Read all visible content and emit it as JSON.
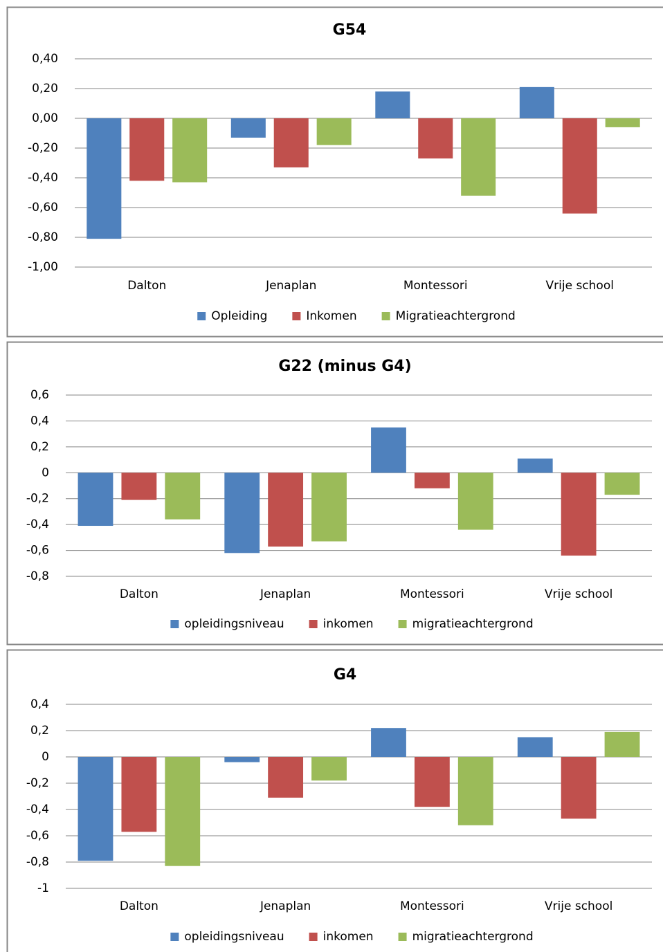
{
  "chart_data": [
    {
      "type": "bar",
      "title": "G54",
      "categories": [
        "Dalton",
        "Jenaplan",
        "Montessori",
        "Vrije school"
      ],
      "series": [
        {
          "name": "Opleiding",
          "color": "#4f81bd",
          "values": [
            -0.81,
            -0.13,
            0.18,
            0.21
          ]
        },
        {
          "name": "Inkomen",
          "color": "#c0504d",
          "values": [
            -0.42,
            -0.33,
            -0.27,
            -0.64
          ]
        },
        {
          "name": "Migratieachtergrond",
          "color": "#9bbb59",
          "values": [
            -0.43,
            -0.18,
            -0.52,
            -0.06
          ]
        }
      ],
      "ylim": [
        -1,
        0.4
      ],
      "yticks": [
        {
          "value": -1,
          "label": "-1,00"
        },
        {
          "value": -0.8,
          "label": "-0,80"
        },
        {
          "value": -0.6,
          "label": "-0,60"
        },
        {
          "value": -0.4,
          "label": "-0,40"
        },
        {
          "value": -0.2,
          "label": "-0,20"
        },
        {
          "value": 0,
          "label": "0,00"
        },
        {
          "value": 0.2,
          "label": "0,20"
        },
        {
          "value": 0.4,
          "label": "0,40"
        }
      ],
      "grid": true,
      "legend": "bottom"
    },
    {
      "type": "bar",
      "title": "G22 (minus G4)",
      "categories": [
        "Dalton",
        "Jenaplan",
        "Montessori",
        "Vrije school"
      ],
      "series": [
        {
          "name": "opleidingsniveau",
          "color": "#4f81bd",
          "values": [
            -0.41,
            -0.62,
            0.35,
            0.11
          ]
        },
        {
          "name": "inkomen",
          "color": "#c0504d",
          "values": [
            -0.21,
            -0.57,
            -0.12,
            -0.64
          ]
        },
        {
          "name": "migratieachtergrond",
          "color": "#9bbb59",
          "values": [
            -0.36,
            -0.53,
            -0.44,
            -0.17
          ]
        }
      ],
      "ylim": [
        -0.8,
        0.6
      ],
      "yticks": [
        {
          "value": -0.8,
          "label": "-0,8"
        },
        {
          "value": -0.6,
          "label": "-0,6"
        },
        {
          "value": -0.4,
          "label": "-0,4"
        },
        {
          "value": -0.2,
          "label": "-0,2"
        },
        0,
        {
          "value": 0.2,
          "label": "0,2"
        },
        {
          "value": 0.4,
          "label": "0,4"
        },
        {
          "value": 0.6,
          "label": "0,6"
        }
      ],
      "grid": true,
      "legend": "bottom"
    },
    {
      "type": "bar",
      "title": "G4",
      "categories": [
        "Dalton",
        "Jenaplan",
        "Montessori",
        "Vrije school"
      ],
      "series": [
        {
          "name": "opleidingsniveau",
          "color": "#4f81bd",
          "values": [
            -0.79,
            -0.04,
            0.22,
            0.15
          ]
        },
        {
          "name": "inkomen",
          "color": "#c0504d",
          "values": [
            -0.57,
            -0.31,
            -0.38,
            -0.47
          ]
        },
        {
          "name": "migratieachtergrond",
          "color": "#9bbb59",
          "values": [
            -0.83,
            -0.18,
            -0.52,
            0.19
          ]
        }
      ],
      "ylim": [
        -1,
        0.4
      ],
      "yticks": [
        -1,
        {
          "value": -0.8,
          "label": "-0,8"
        },
        {
          "value": -0.6,
          "label": "-0,6"
        },
        {
          "value": -0.4,
          "label": "-0,4"
        },
        {
          "value": -0.2,
          "label": "-0,2"
        },
        0,
        {
          "value": 0.2,
          "label": "0,2"
        },
        {
          "value": 0.4,
          "label": "0,4"
        }
      ],
      "grid": true,
      "legend": "bottom"
    }
  ]
}
